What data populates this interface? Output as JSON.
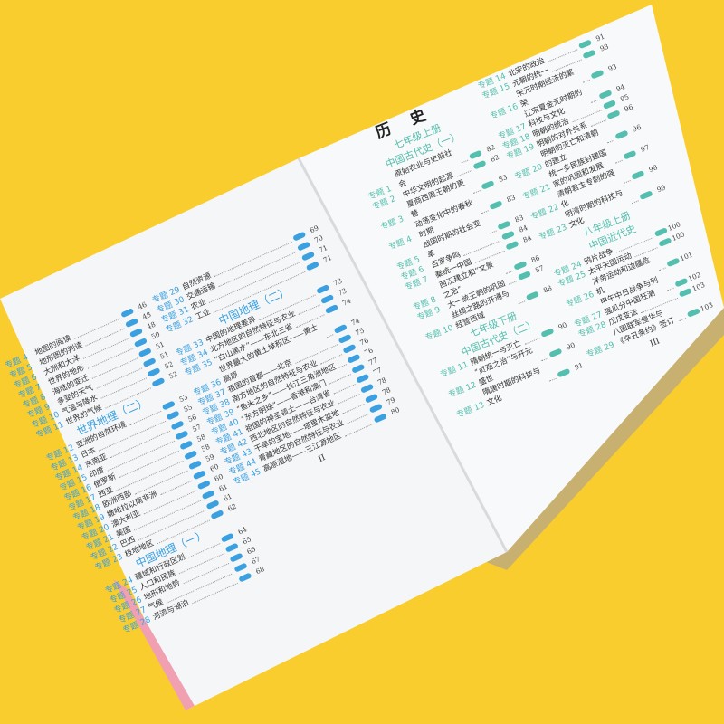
{
  "colors": {
    "background": "#f9cd2e",
    "geo_accent": "#3aa0e0",
    "history_accent": "#54bfae",
    "page": "#f7f8fa"
  },
  "label_prefix": "专题",
  "left_page": {
    "page_number": "II",
    "col1": [
      {
        "n": "4",
        "t": "地图的阅读",
        "p": "46"
      },
      {
        "n": "5",
        "t": "地形图的判读",
        "p": "48"
      },
      {
        "n": "6",
        "t": "大洲和大洋",
        "p": "48"
      },
      {
        "n": "7",
        "t": "世界的地形",
        "p": "50"
      },
      {
        "n": "8",
        "t": "海陆的变迁",
        "p": "51"
      },
      {
        "n": "9",
        "t": "多变的天气",
        "p": "51"
      },
      {
        "n": "10",
        "t": "气温与降水",
        "p": "52"
      },
      {
        "n": "11",
        "t": "世界的气候",
        "p": "52"
      },
      {
        "section": "世界地理（二）"
      },
      {
        "n": "12",
        "t": "亚洲的自然环境",
        "p": "53"
      },
      {
        "n": "13",
        "t": "日本",
        "p": "55"
      },
      {
        "n": "14",
        "t": "东南亚",
        "p": "56"
      },
      {
        "n": "15",
        "t": "印度",
        "p": "57"
      },
      {
        "n": "16",
        "t": "俄罗斯",
        "p": "58"
      },
      {
        "n": "17",
        "t": "西亚",
        "p": "58"
      },
      {
        "n": "18",
        "t": "欧洲西部",
        "p": "59"
      },
      {
        "n": "19",
        "t": "撒哈拉以南非洲",
        "p": "60"
      },
      {
        "n": "20",
        "t": "澳大利亚",
        "p": "60"
      },
      {
        "n": "21",
        "t": "美国",
        "p": "61"
      },
      {
        "n": "22",
        "t": "巴西",
        "p": "61"
      },
      {
        "n": "23",
        "t": "极地地区",
        "p": "62"
      },
      {
        "section": "中国地理（一）"
      },
      {
        "n": "24",
        "t": "疆域和行政区划",
        "p": "64"
      },
      {
        "n": "25",
        "t": "人口和民族",
        "p": "65"
      },
      {
        "n": "26",
        "t": "地形和地势",
        "p": "66"
      },
      {
        "n": "27",
        "t": "气候",
        "p": "67"
      },
      {
        "n": "28",
        "t": "河流与湖泊",
        "p": "68"
      }
    ],
    "col2": [
      {
        "n": "29",
        "t": "自然资源",
        "p": "69"
      },
      {
        "n": "30",
        "t": "交通运输",
        "p": "70"
      },
      {
        "n": "31",
        "t": "农业",
        "p": "71"
      },
      {
        "n": "32",
        "t": "工业",
        "p": "71"
      },
      {
        "section": "中国地理（二）"
      },
      {
        "n": "33",
        "t": "中国的地理差异",
        "p": "73"
      },
      {
        "n": "34",
        "t": "北方地区的自然特征与农业",
        "p": "73"
      },
      {
        "n": "35",
        "t": "“白山黑水”——东北三省",
        "p": "74"
      },
      {
        "n": "36",
        "t": "世界最大的黄土堆积区——黄土高原",
        "p": "74"
      },
      {
        "n": "37",
        "t": "祖国的首都——北京",
        "p": "75"
      },
      {
        "n": "38",
        "t": "南方地区的自然特征与农业",
        "p": "76"
      },
      {
        "n": "39",
        "t": "“鱼米之乡”——长江三角洲地区",
        "p": "76"
      },
      {
        "n": "40",
        "t": "“东方明珠”——香港和澳门",
        "p": "77"
      },
      {
        "n": "41",
        "t": "祖国的神圣领土——台湾省",
        "p": "77"
      },
      {
        "n": "42",
        "t": "西北地区的自然特征与农业",
        "p": "78"
      },
      {
        "n": "43",
        "t": "干旱的宝地——塔里木盆地",
        "p": "78"
      },
      {
        "n": "44",
        "t": "青藏地区的自然特征与农业",
        "p": "79"
      },
      {
        "n": "45",
        "t": "高原湿地——三江源地区",
        "p": "80"
      }
    ]
  },
  "right_page": {
    "title": "历史",
    "page_number": "III",
    "col1": [
      {
        "section": "七年级上册"
      },
      {
        "section": "中国古代史（一）"
      },
      {
        "n": "1",
        "t": "原始农业与史前社会",
        "p": "82"
      },
      {
        "n": "2",
        "t": "中华文明的起源",
        "p": "82"
      },
      {
        "n": "3",
        "t": "夏商西周王朝的更替",
        "p": "83"
      },
      {
        "n": "4",
        "t": "动荡变化中的春秋时期",
        "p": "83"
      },
      {
        "n": "5",
        "t": "战国时期的社会变革",
        "p": "83"
      },
      {
        "n": "6",
        "t": "百家争鸣",
        "p": "84"
      },
      {
        "n": "7",
        "t": "秦统一中国",
        "p": "84"
      },
      {
        "n": "8",
        "t": "西汉建立和“文景之治”",
        "p": "86"
      },
      {
        "n": "9",
        "t": "大一统王朝的巩固",
        "p": "87"
      },
      {
        "n": "10",
        "t": "丝绸之路的开通与经营西域",
        "p": "88"
      },
      {
        "section": "七年级下册"
      },
      {
        "section": "中国古代史（二）"
      },
      {
        "n": "11",
        "t": "隋朝统一与灭亡",
        "p": "90"
      },
      {
        "n": "12",
        "t": "“贞观之治”与开元盛世",
        "p": "90"
      },
      {
        "n": "13",
        "t": "隋唐时期的科技与文化",
        "p": "91"
      }
    ],
    "col2": [
      {
        "n": "14",
        "t": "北宋的政治",
        "p": "91"
      },
      {
        "n": "15",
        "t": "元朝的统一",
        "p": "93"
      },
      {
        "n": "16",
        "t": "宋元时期经济的繁荣",
        "p": "93"
      },
      {
        "n": "17",
        "t": "辽宋夏金元时期的科技与文化",
        "p": "94"
      },
      {
        "n": "18",
        "t": "明朝的统治",
        "p": "95"
      },
      {
        "n": "19",
        "t": "明朝的对外关系",
        "p": "96"
      },
      {
        "n": "20",
        "t": "明朝的灭亡和清朝的建立",
        "p": "96"
      },
      {
        "n": "21",
        "t": "统一多民族封建国家的巩固和发展",
        "p": "97"
      },
      {
        "n": "22",
        "t": "清朝君主专制的强化",
        "p": "98"
      },
      {
        "n": "23",
        "t": "明清时期的科技与文化",
        "p": "99"
      },
      {
        "section": "八年级上册"
      },
      {
        "section": "中国近代史"
      },
      {
        "n": "24",
        "t": "鸦片战争",
        "p": "100"
      },
      {
        "n": "25",
        "t": "太平天国运动",
        "p": "100"
      },
      {
        "n": "26",
        "t": "洋务运动和边疆危机",
        "p": "101"
      },
      {
        "n": "27",
        "t": "甲午中日战争与列强瓜分中国狂潮",
        "p": "102"
      },
      {
        "n": "28",
        "t": "戊戌变法",
        "p": "103"
      },
      {
        "n": "29",
        "t": "八国联军侵华与《辛丑条约》签订",
        "p": "103"
      }
    ]
  }
}
